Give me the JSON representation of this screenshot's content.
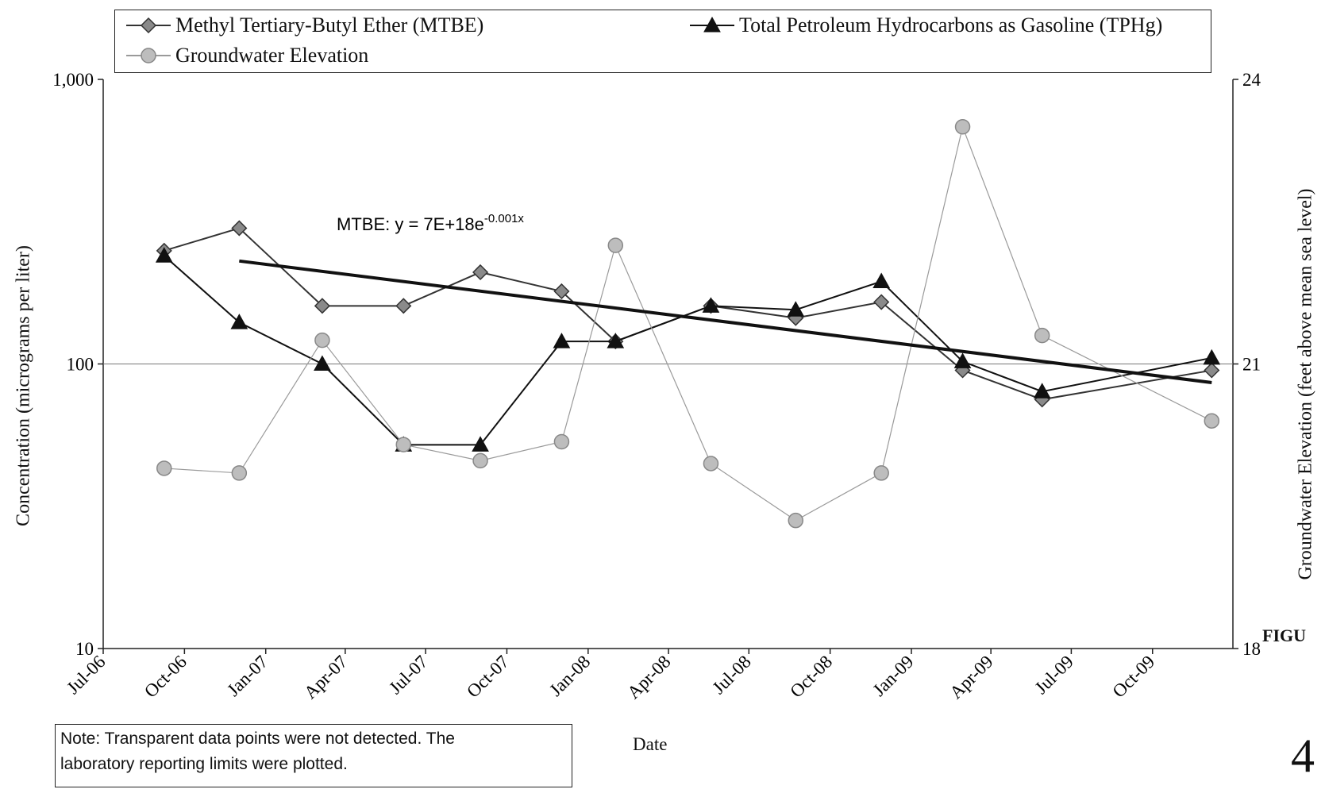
{
  "chart_data": {
    "type": "line",
    "title": "",
    "xlabel": "Date",
    "ylabel": "Concentration (micrograms per liter)",
    "y2label": "Groundwater Elevation (feet above mean sea level)",
    "yscale": "log",
    "ylim": [
      10,
      1000
    ],
    "y_ticks": [
      "1,000",
      "100",
      "10"
    ],
    "y2lim": [
      18,
      24
    ],
    "y2_ticks": [
      "24",
      "21",
      "18"
    ],
    "x_ticks": [
      "Jul-06",
      "Oct-06",
      "Jan-07",
      "Apr-07",
      "Jul-07",
      "Oct-07",
      "Jan-08",
      "Apr-08",
      "Jul-08",
      "Oct-08",
      "Jan-09",
      "Apr-09",
      "Jul-09",
      "Oct-09"
    ],
    "x_range": [
      "2006-07-01",
      "2009-12-31"
    ],
    "reference_line": {
      "axis": "y2",
      "value": 21
    },
    "series": [
      {
        "name": "Methyl Tertiary-Butyl Ether (MTBE)",
        "marker": "diamond",
        "color": "#333333",
        "marker_color": "#8a8a8a",
        "axis": "y",
        "x": [
          "2006-09-08",
          "2006-12-02",
          "2007-03-06",
          "2007-06-06",
          "2007-09-01",
          "2007-12-02",
          "2008-02-01",
          "2008-05-19",
          "2008-08-23",
          "2008-11-28",
          "2009-02-28",
          "2009-05-29",
          "2009-12-07"
        ],
        "values": [
          250,
          300,
          160,
          160,
          210,
          180,
          120,
          160,
          145,
          165,
          95,
          75,
          95
        ]
      },
      {
        "name": "Total Petroleum Hydrocarbons as Gasoline (TPHg)",
        "marker": "triangle",
        "color": "#111111",
        "marker_color": "#111111",
        "axis": "y",
        "x": [
          "2006-09-08",
          "2006-12-02",
          "2007-03-06",
          "2007-06-06",
          "2007-09-01",
          "2007-12-02",
          "2008-02-01",
          "2008-05-19",
          "2008-08-23",
          "2008-11-28",
          "2009-02-28",
          "2009-05-29",
          "2009-12-07"
        ],
        "values": [
          240,
          140,
          100,
          52,
          52,
          120,
          120,
          160,
          155,
          195,
          102,
          80,
          105
        ]
      },
      {
        "name": "Groundwater Elevation",
        "marker": "circle",
        "color": "#9a9a9a",
        "marker_color": "#bdbdbd",
        "axis": "y2",
        "x": [
          "2006-09-08",
          "2006-12-02",
          "2007-03-06",
          "2007-06-06",
          "2007-09-01",
          "2007-12-02",
          "2008-02-01",
          "2008-05-19",
          "2008-08-23",
          "2008-11-28",
          "2009-02-28",
          "2009-05-29",
          "2009-12-07"
        ],
        "values": [
          19.9,
          19.85,
          21.25,
          20.15,
          19.98,
          20.18,
          22.25,
          19.95,
          19.35,
          19.85,
          23.5,
          21.3,
          20.4
        ]
      }
    ],
    "trendline": {
      "label": "MTBE:  y = 7E+18e",
      "label_exp": "-0.001x",
      "x": [
        "2006-12-02",
        "2009-12-07"
      ],
      "values": [
        230,
        86
      ]
    }
  },
  "legend": {
    "items": [
      "Methyl Tertiary-Butyl Ether (MTBE)",
      "Total Petroleum Hydrocarbons as Gasoline (TPHg)",
      "Groundwater Elevation"
    ]
  },
  "note": {
    "line1": "Note: Transparent data points were not detected.  The",
    "line2": "laboratory reporting limits were plotted."
  },
  "figure": {
    "word": "FIGU",
    "number": "4"
  }
}
